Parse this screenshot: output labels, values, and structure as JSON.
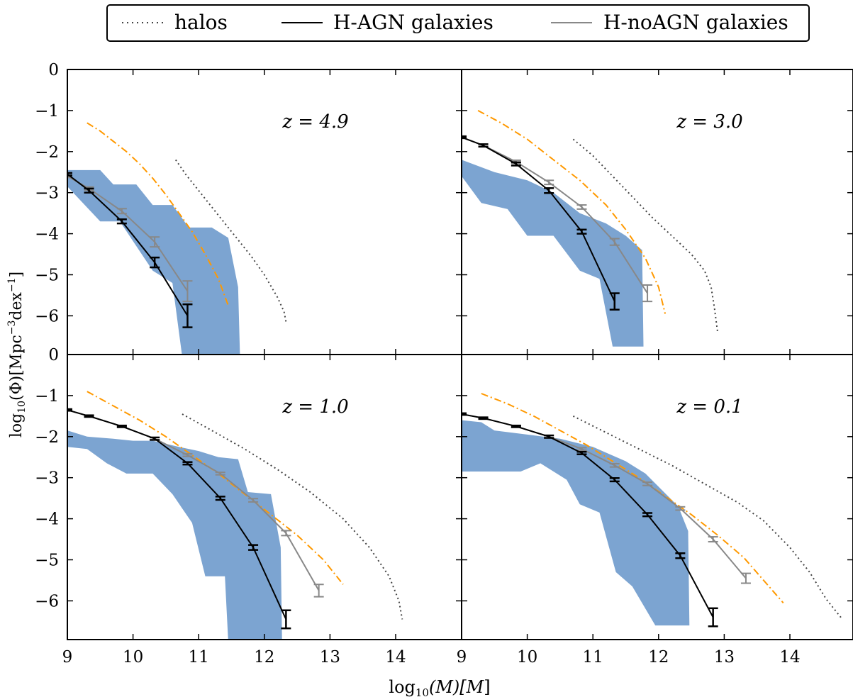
{
  "legend": {
    "entries": [
      {
        "label": "halos",
        "style": "dotted",
        "color": "#444444"
      },
      {
        "label": "H-AGN galaxies",
        "style": "solid",
        "color": "#000000"
      },
      {
        "label": "H-noAGN galaxies",
        "style": "solid",
        "color": "#888888"
      }
    ]
  },
  "axes": {
    "xlabel_main": "log",
    "xlabel_sub": "10",
    "xlabel_rest": "(M)[M",
    "xlabel_end": "]",
    "ylabel_main": "log",
    "ylabel_sub": "10",
    "ylabel_rest": "(Φ)[Mpc",
    "ylabel_sup1": "−3",
    "ylabel_mid": "dex",
    "ylabel_sup2": "−1",
    "ylabel_end": "]"
  },
  "colors": {
    "band": "#7ca4d1",
    "orange": "#ff9900",
    "agn": "#000000",
    "noagn": "#888888",
    "halo": "#444444"
  },
  "chart_data": [
    {
      "type": "line",
      "panel": "top-left",
      "annotation": "z = 4.9",
      "xlim": [
        9,
        15
      ],
      "ylim": [
        -7,
        0
      ],
      "x_ticks": [],
      "y_ticks": [
        "0",
        "−1",
        "−2",
        "−3",
        "−4",
        "−5",
        "−6"
      ],
      "band": {
        "upper": [
          [
            9,
            -2.45
          ],
          [
            9.5,
            -2.45
          ],
          [
            9.7,
            -2.8
          ],
          [
            10.05,
            -2.8
          ],
          [
            10.3,
            -3.3
          ],
          [
            10.6,
            -3.3
          ],
          [
            10.85,
            -3.85
          ],
          [
            11.2,
            -3.85
          ],
          [
            11.45,
            -4.1
          ],
          [
            11.6,
            -5.3
          ],
          [
            11.63,
            -7
          ]
        ],
        "lower": [
          [
            9,
            -2.85
          ],
          [
            9.5,
            -3.7
          ],
          [
            9.8,
            -3.7
          ],
          [
            10.05,
            -4.3
          ],
          [
            10.3,
            -4.9
          ],
          [
            10.6,
            -5.2
          ],
          [
            10.75,
            -7
          ]
        ]
      },
      "series": [
        {
          "name": "halos",
          "x": [
            10.65,
            10.8,
            11.0,
            11.2,
            11.4,
            11.6,
            11.8,
            12.0,
            12.2,
            12.3,
            12.33
          ],
          "y": [
            -2.2,
            -2.55,
            -2.95,
            -3.35,
            -3.75,
            -4.15,
            -4.55,
            -5.0,
            -5.55,
            -5.9,
            -6.15
          ]
        },
        {
          "x": [
            9.3,
            9.5,
            9.7,
            9.9,
            10.1,
            10.3,
            10.5,
            10.7,
            10.9,
            11.1,
            11.3,
            11.45
          ],
          "y": [
            -1.3,
            -1.5,
            -1.75,
            -2.0,
            -2.3,
            -2.65,
            -3.05,
            -3.5,
            -3.95,
            -4.5,
            -5.1,
            -5.75
          ]
        },
        {
          "name": "H-noAGN galaxies",
          "x": [
            9,
            9.33,
            9.83,
            10.33,
            10.83
          ],
          "y": [
            -2.6,
            -2.9,
            -3.45,
            -4.2,
            -5.4
          ],
          "err": [
            0.03,
            0.04,
            0.06,
            0.12,
            0.25
          ]
        },
        {
          "name": "H-AGN galaxies",
          "x": [
            9,
            9.33,
            9.83,
            10.33,
            10.83
          ],
          "y": [
            -2.55,
            -2.95,
            -3.7,
            -4.7,
            -6.0
          ],
          "err": [
            0.03,
            0.05,
            0.05,
            0.12,
            0.28
          ]
        }
      ]
    },
    {
      "type": "line",
      "panel": "top-right",
      "annotation": "z = 3.0",
      "xlim": [
        9,
        15
      ],
      "ylim": [
        -7,
        0
      ],
      "x_ticks": [],
      "y_ticks": [],
      "band": {
        "upper": [
          [
            9,
            -2.2
          ],
          [
            9.5,
            -2.5
          ],
          [
            10.0,
            -2.7
          ],
          [
            10.4,
            -3.0
          ],
          [
            10.8,
            -3.5
          ],
          [
            11.2,
            -3.75
          ],
          [
            11.5,
            -4.05
          ],
          [
            11.75,
            -4.4
          ],
          [
            11.77,
            -6.75
          ]
        ],
        "lower": [
          [
            9,
            -2.6
          ],
          [
            9.3,
            -3.25
          ],
          [
            9.7,
            -3.4
          ],
          [
            10.0,
            -4.05
          ],
          [
            10.4,
            -4.05
          ],
          [
            10.8,
            -4.9
          ],
          [
            11.1,
            -5.1
          ],
          [
            11.3,
            -6.75
          ]
        ]
      },
      "series": [
        {
          "name": "halos",
          "x": [
            10.7,
            11.0,
            11.3,
            11.6,
            11.9,
            12.2,
            12.5,
            12.7,
            12.8,
            12.85,
            12.9
          ],
          "y": [
            -1.7,
            -2.1,
            -2.6,
            -3.1,
            -3.6,
            -4.05,
            -4.5,
            -4.9,
            -5.3,
            -5.8,
            -6.4
          ]
        },
        {
          "x": [
            9.25,
            9.6,
            10.0,
            10.4,
            10.8,
            11.2,
            11.5,
            11.8,
            12.0,
            12.1
          ],
          "y": [
            -1.0,
            -1.3,
            -1.7,
            -2.2,
            -2.7,
            -3.3,
            -3.9,
            -4.6,
            -5.3,
            -5.95
          ]
        },
        {
          "name": "H-noAGN galaxies",
          "x": [
            9,
            9.33,
            9.83,
            10.33,
            10.83,
            11.33,
            11.83
          ],
          "y": [
            -1.65,
            -1.85,
            -2.25,
            -2.75,
            -3.35,
            -4.2,
            -5.45
          ],
          "err": [
            0.03,
            0.03,
            0.04,
            0.05,
            0.05,
            0.08,
            0.2
          ]
        },
        {
          "name": "H-AGN galaxies",
          "x": [
            9,
            9.33,
            9.83,
            10.33,
            10.83,
            11.33
          ],
          "y": [
            -1.65,
            -1.85,
            -2.3,
            -2.95,
            -3.95,
            -5.65
          ],
          "err": [
            0.02,
            0.03,
            0.04,
            0.06,
            0.05,
            0.2
          ]
        }
      ]
    },
    {
      "type": "line",
      "panel": "bottom-left",
      "annotation": "z = 1.0",
      "xlim": [
        9,
        15
      ],
      "ylim": [
        -7,
        0
      ],
      "x_ticks": [
        "9",
        "10",
        "11",
        "12",
        "13",
        "14"
      ],
      "y_ticks": [
        "0",
        "−1",
        "−2",
        "−3",
        "−4",
        "−5",
        "−6"
      ],
      "band": {
        "upper": [
          [
            9,
            -1.85
          ],
          [
            9.3,
            -2.0
          ],
          [
            9.7,
            -2.05
          ],
          [
            10.0,
            -2.1
          ],
          [
            10.3,
            -2.1
          ],
          [
            10.7,
            -2.25
          ],
          [
            11.0,
            -2.35
          ],
          [
            11.3,
            -2.5
          ],
          [
            11.6,
            -2.55
          ],
          [
            11.75,
            -3.35
          ],
          [
            12.1,
            -3.4
          ],
          [
            12.25,
            -4.7
          ],
          [
            12.27,
            -7
          ]
        ],
        "lower": [
          [
            9,
            -2.25
          ],
          [
            9.3,
            -2.3
          ],
          [
            9.6,
            -2.65
          ],
          [
            9.9,
            -2.9
          ],
          [
            10.3,
            -2.9
          ],
          [
            10.6,
            -3.4
          ],
          [
            10.9,
            -4.1
          ],
          [
            11.1,
            -5.4
          ],
          [
            11.4,
            -5.4
          ],
          [
            11.45,
            -7
          ]
        ]
      },
      "series": [
        {
          "name": "halos",
          "x": [
            10.75,
            11.2,
            11.7,
            12.2,
            12.7,
            13.2,
            13.6,
            13.9,
            14.05,
            14.1
          ],
          "y": [
            -1.45,
            -1.85,
            -2.3,
            -2.8,
            -3.35,
            -4.0,
            -4.7,
            -5.4,
            -6.0,
            -6.45
          ]
        },
        {
          "x": [
            9.3,
            9.7,
            10.1,
            10.5,
            10.9,
            11.3,
            11.7,
            12.1,
            12.5,
            12.9,
            13.2
          ],
          "y": [
            -0.9,
            -1.25,
            -1.6,
            -2.0,
            -2.45,
            -2.9,
            -3.4,
            -3.9,
            -4.4,
            -5.0,
            -5.6
          ]
        },
        {
          "name": "H-noAGN galaxies",
          "x": [
            9,
            9.33,
            9.83,
            10.33,
            10.83,
            11.33,
            11.83,
            12.33,
            12.83
          ],
          "y": [
            -1.35,
            -1.5,
            -1.75,
            -2.05,
            -2.45,
            -2.9,
            -3.55,
            -4.35,
            -5.75
          ],
          "err": [
            0.02,
            0.02,
            0.02,
            0.03,
            0.03,
            0.03,
            0.04,
            0.06,
            0.15
          ]
        },
        {
          "name": "H-AGN galaxies",
          "x": [
            9,
            9.33,
            9.83,
            10.33,
            10.83,
            11.33,
            11.83,
            12.33
          ],
          "y": [
            -1.35,
            -1.5,
            -1.75,
            -2.05,
            -2.65,
            -3.5,
            -4.7,
            -6.45
          ],
          "err": [
            0.02,
            0.02,
            0.02,
            0.03,
            0.03,
            0.04,
            0.06,
            0.22
          ]
        }
      ]
    },
    {
      "type": "line",
      "panel": "bottom-right",
      "annotation": "z = 0.1",
      "xlim": [
        9,
        15
      ],
      "ylim": [
        -7,
        0
      ],
      "x_ticks": [
        "9",
        "10",
        "11",
        "12",
        "13",
        "14"
      ],
      "y_ticks": [],
      "band": {
        "upper": [
          [
            9,
            -1.6
          ],
          [
            9.3,
            -1.65
          ],
          [
            9.5,
            -1.85
          ],
          [
            10.0,
            -1.95
          ],
          [
            10.5,
            -2.05
          ],
          [
            11.0,
            -2.25
          ],
          [
            11.5,
            -2.6
          ],
          [
            11.8,
            -2.9
          ],
          [
            12.3,
            -3.7
          ],
          [
            12.45,
            -4.3
          ],
          [
            12.47,
            -6.6
          ]
        ],
        "lower": [
          [
            9,
            -2.85
          ],
          [
            9.5,
            -2.85
          ],
          [
            9.9,
            -2.85
          ],
          [
            10.2,
            -2.65
          ],
          [
            10.6,
            -3.05
          ],
          [
            10.8,
            -3.65
          ],
          [
            11.1,
            -3.85
          ],
          [
            11.35,
            -5.3
          ],
          [
            11.6,
            -5.65
          ],
          [
            11.95,
            -6.6
          ]
        ]
      },
      "series": [
        {
          "name": "halos",
          "x": [
            10.7,
            11.2,
            11.7,
            12.2,
            12.7,
            13.2,
            13.6,
            14.0,
            14.3,
            14.55,
            14.8
          ],
          "y": [
            -1.5,
            -1.9,
            -2.3,
            -2.7,
            -3.15,
            -3.6,
            -4.05,
            -4.7,
            -5.3,
            -5.95,
            -6.45
          ]
        },
        {
          "x": [
            9.3,
            9.7,
            10.1,
            10.5,
            10.9,
            11.3,
            11.7,
            12.1,
            12.5,
            12.9,
            13.3,
            13.6,
            13.9
          ],
          "y": [
            -0.95,
            -1.2,
            -1.5,
            -1.85,
            -2.2,
            -2.6,
            -3.0,
            -3.45,
            -3.9,
            -4.4,
            -4.95,
            -5.5,
            -6.05
          ]
        },
        {
          "name": "H-noAGN galaxies",
          "x": [
            9,
            9.33,
            9.83,
            10.33,
            10.83,
            11.33,
            11.83,
            12.33,
            12.83,
            13.33
          ],
          "y": [
            -1.45,
            -1.55,
            -1.75,
            -2.0,
            -2.3,
            -2.7,
            -3.15,
            -3.75,
            -4.5,
            -5.45
          ],
          "err": [
            0.02,
            0.02,
            0.02,
            0.03,
            0.03,
            0.04,
            0.04,
            0.04,
            0.06,
            0.12
          ]
        },
        {
          "name": "H-AGN galaxies",
          "x": [
            9,
            9.33,
            9.83,
            10.33,
            10.83,
            11.33,
            11.83,
            12.33,
            12.83
          ],
          "y": [
            -1.45,
            -1.55,
            -1.75,
            -2.0,
            -2.4,
            -3.05,
            -3.9,
            -4.9,
            -6.4
          ],
          "err": [
            0.02,
            0.02,
            0.02,
            0.03,
            0.03,
            0.04,
            0.04,
            0.06,
            0.22
          ]
        }
      ]
    }
  ]
}
